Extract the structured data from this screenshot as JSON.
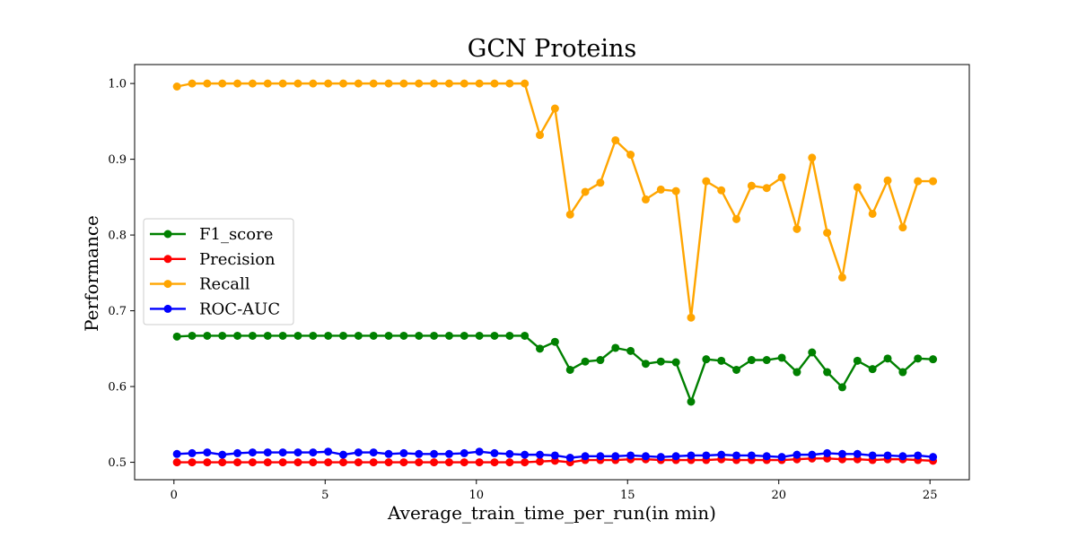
{
  "chart_data": {
    "type": "line",
    "title": "GCN Proteins",
    "xlabel": "Average_train_time_per_run(in min)",
    "ylabel": "Performance",
    "xlim": [
      -1.3,
      26.3
    ],
    "ylim": [
      0.477,
      1.025
    ],
    "xticks": [
      0,
      5,
      10,
      15,
      20,
      25
    ],
    "yticks": [
      0.5,
      0.6,
      0.7,
      0.8,
      0.9,
      1.0
    ],
    "ytick_labels": [
      "0.5",
      "0.6",
      "0.7",
      "0.8",
      "0.9",
      "1.0"
    ],
    "legend_position": "center-left",
    "grid": false,
    "x": [
      0.1,
      0.6,
      1.1,
      1.6,
      2.1,
      2.6,
      3.1,
      3.6,
      4.1,
      4.6,
      5.1,
      5.6,
      6.1,
      6.6,
      7.1,
      7.6,
      8.1,
      8.6,
      9.1,
      9.6,
      10.1,
      10.6,
      11.1,
      11.6,
      12.1,
      12.6,
      13.1,
      13.6,
      14.1,
      14.6,
      15.1,
      15.6,
      16.1,
      16.6,
      17.1,
      17.6,
      18.1,
      18.6,
      19.1,
      19.6,
      20.1,
      20.6,
      21.1,
      21.6,
      22.1,
      22.6,
      23.1,
      23.6,
      24.1,
      24.6,
      25.1
    ],
    "series": [
      {
        "name": "F1_score",
        "color": "#008000",
        "values": [
          0.666,
          0.667,
          0.667,
          0.667,
          0.667,
          0.667,
          0.667,
          0.667,
          0.667,
          0.667,
          0.667,
          0.667,
          0.667,
          0.667,
          0.667,
          0.667,
          0.667,
          0.667,
          0.667,
          0.667,
          0.667,
          0.667,
          0.667,
          0.667,
          0.65,
          0.659,
          0.622,
          0.633,
          0.635,
          0.651,
          0.647,
          0.63,
          0.633,
          0.632,
          0.58,
          0.636,
          0.634,
          0.622,
          0.635,
          0.635,
          0.638,
          0.619,
          0.645,
          0.619,
          0.599,
          0.634,
          0.623,
          0.637,
          0.619,
          0.637,
          0.636
        ]
      },
      {
        "name": "Precision",
        "color": "#ff0000",
        "values": [
          0.5,
          0.5,
          0.5,
          0.5,
          0.5,
          0.5,
          0.5,
          0.5,
          0.5,
          0.5,
          0.5,
          0.5,
          0.5,
          0.5,
          0.5,
          0.5,
          0.5,
          0.5,
          0.5,
          0.5,
          0.5,
          0.5,
          0.5,
          0.5,
          0.501,
          0.502,
          0.5,
          0.503,
          0.503,
          0.503,
          0.504,
          0.504,
          0.503,
          0.503,
          0.503,
          0.503,
          0.504,
          0.503,
          0.503,
          0.503,
          0.503,
          0.504,
          0.505,
          0.505,
          0.504,
          0.504,
          0.503,
          0.504,
          0.504,
          0.503,
          0.502
        ]
      },
      {
        "name": "Recall",
        "color": "#ffa500",
        "values": [
          0.996,
          1.0,
          1.0,
          1.0,
          1.0,
          1.0,
          1.0,
          1.0,
          1.0,
          1.0,
          1.0,
          1.0,
          1.0,
          1.0,
          1.0,
          1.0,
          1.0,
          1.0,
          1.0,
          1.0,
          1.0,
          1.0,
          1.0,
          1.0,
          0.932,
          0.967,
          0.827,
          0.857,
          0.869,
          0.925,
          0.906,
          0.847,
          0.86,
          0.858,
          0.691,
          0.871,
          0.859,
          0.821,
          0.865,
          0.862,
          0.876,
          0.808,
          0.902,
          0.803,
          0.744,
          0.863,
          0.828,
          0.872,
          0.81,
          0.871,
          0.871
        ]
      },
      {
        "name": "ROC-AUC",
        "color": "#0000ff",
        "values": [
          0.511,
          0.512,
          0.513,
          0.51,
          0.512,
          0.513,
          0.513,
          0.513,
          0.513,
          0.513,
          0.514,
          0.51,
          0.513,
          0.513,
          0.511,
          0.512,
          0.511,
          0.511,
          0.511,
          0.512,
          0.514,
          0.512,
          0.511,
          0.51,
          0.51,
          0.509,
          0.506,
          0.508,
          0.508,
          0.508,
          0.509,
          0.508,
          0.507,
          0.508,
          0.509,
          0.509,
          0.51,
          0.509,
          0.509,
          0.508,
          0.507,
          0.51,
          0.51,
          0.512,
          0.511,
          0.511,
          0.509,
          0.509,
          0.508,
          0.509,
          0.507
        ]
      }
    ]
  }
}
